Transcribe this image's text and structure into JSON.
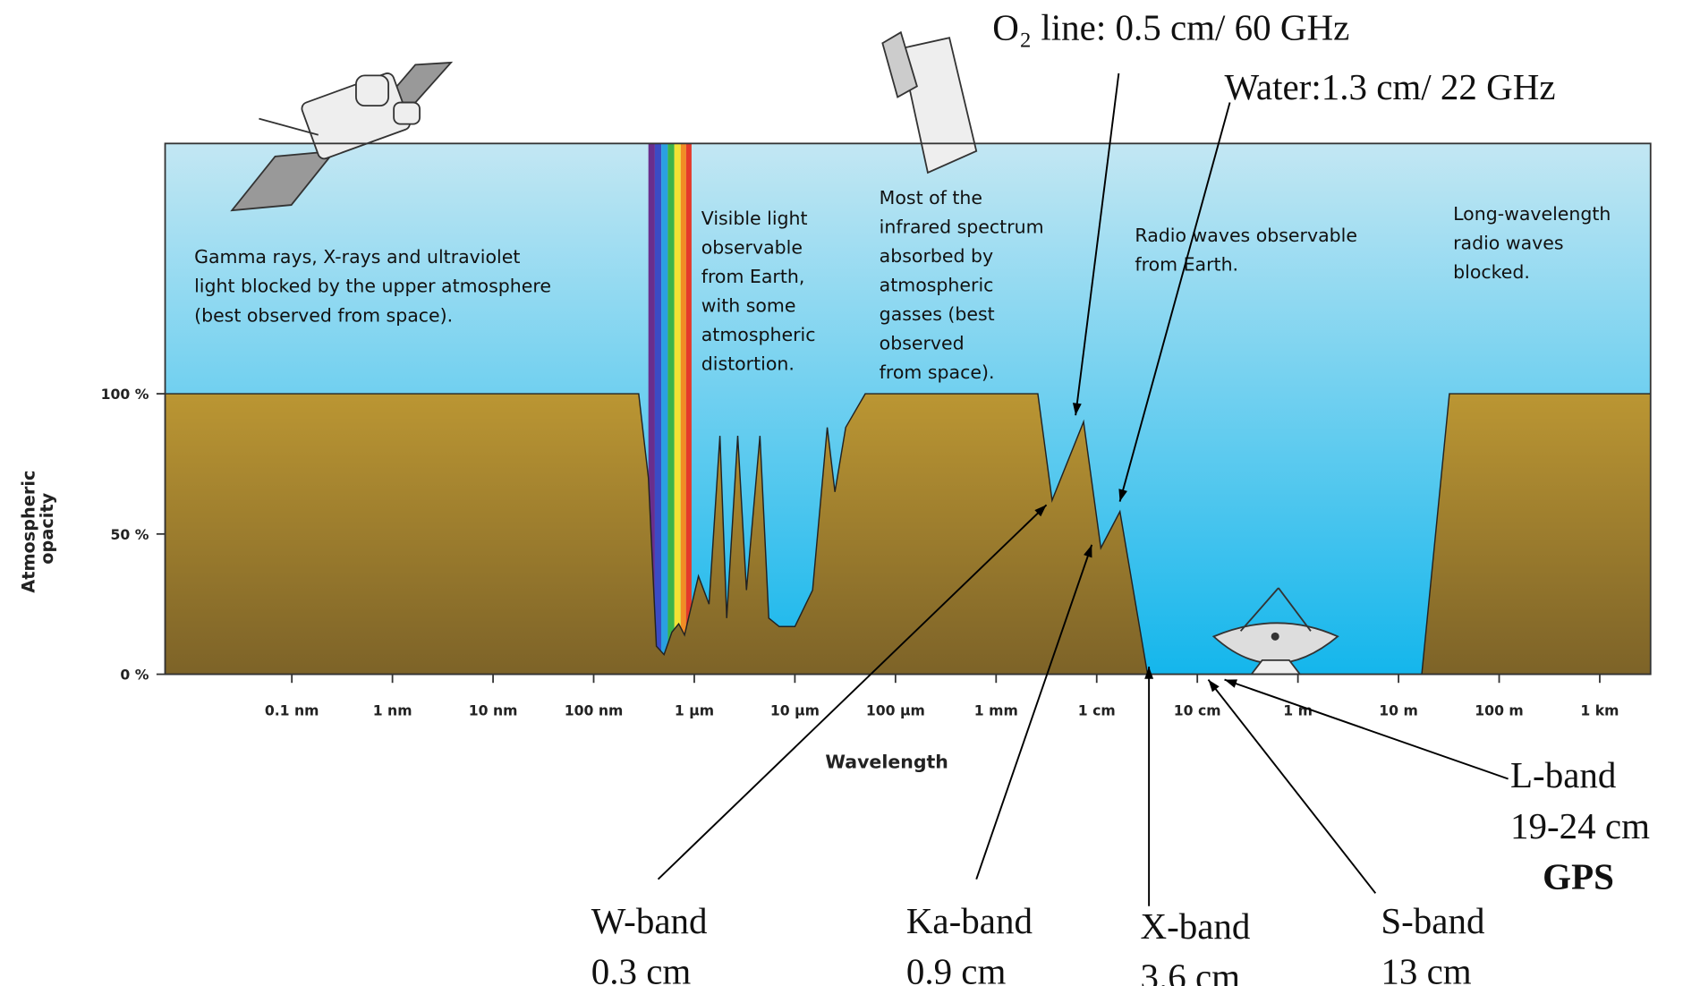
{
  "chart_data": {
    "type": "area",
    "xlabel": "Wavelength",
    "ylabel": [
      "Atmospheric",
      "opacity"
    ],
    "xscale": "log",
    "xlim": [
      5.5e-12,
      3200
    ],
    "ylim": [
      0,
      100
    ],
    "xticks": [
      {
        "value": 1e-10,
        "label": "0.1 nm"
      },
      {
        "value": 1e-09,
        "label": "1 nm"
      },
      {
        "value": 1e-08,
        "label": "10 nm"
      },
      {
        "value": 1e-07,
        "label": "100 nm"
      },
      {
        "value": 1e-06,
        "label": "1 µm"
      },
      {
        "value": 1e-05,
        "label": "10 µm"
      },
      {
        "value": 0.0001,
        "label": "100 µm"
      },
      {
        "value": 0.001,
        "label": "1 mm"
      },
      {
        "value": 0.01,
        "label": "1 cm"
      },
      {
        "value": 0.1,
        "label": "10 cm"
      },
      {
        "value": 1,
        "label": "1 m"
      },
      {
        "value": 10,
        "label": "10 m"
      },
      {
        "value": 100,
        "label": "100 m"
      },
      {
        "value": 1000,
        "label": "1 km"
      }
    ],
    "yticks": [
      {
        "value": 0,
        "label": "0 %"
      },
      {
        "value": 50,
        "label": "50 %"
      },
      {
        "value": 100,
        "label": "100 %"
      }
    ],
    "x": [
      5.5e-12,
      2.8e-07,
      3.5e-07,
      4.2e-07,
      5e-07,
      6e-07,
      7e-07,
      8e-07,
      1.1e-06,
      1.4e-06,
      1.8e-06,
      2.1e-06,
      2.7e-06,
      3.3e-06,
      4.5e-06,
      5.5e-06,
      7e-06,
      1e-05,
      1.5e-05,
      2.1e-05,
      2.5e-05,
      3.2e-05,
      5e-05,
      0.0026,
      0.0036,
      0.0074,
      0.011,
      0.017,
      0.032,
      17,
      32,
      3200
    ],
    "series": [
      {
        "name": "Atmospheric opacity",
        "color": "#a8832e",
        "values": [
          100,
          100,
          70,
          10,
          7,
          15,
          18,
          14,
          35,
          25,
          85,
          20,
          85,
          30,
          85,
          20,
          17,
          17,
          30,
          88,
          65,
          88,
          100,
          100,
          62,
          90,
          45,
          58,
          0,
          0,
          100,
          100
        ]
      }
    ],
    "annotations": [
      [
        "Gamma rays, X-rays and ultraviolet",
        "light blocked by the upper atmosphere",
        "(best observed from space)."
      ],
      [
        "Visible light",
        "observable",
        "from Earth,",
        "with some",
        "atmospheric",
        "distortion."
      ],
      [
        "Most of the",
        "infrared spectrum",
        "absorbed by",
        "atmospheric",
        "gasses (best",
        "observed",
        "from space)."
      ],
      [
        "Radio waves observable",
        "from Earth."
      ],
      [
        "Long-wavelength",
        "radio waves",
        "blocked."
      ]
    ],
    "lines": [
      "O₂ line: 0.5 cm/ 60 GHz",
      "Water:1.3 cm/ 22 GHz"
    ],
    "bands": [
      [
        "W-band",
        "0.3 cm"
      ],
      [
        "Ka-band",
        "0.9 cm"
      ],
      [
        "X-band",
        "3.6 cm"
      ],
      [
        "S-band",
        "13 cm"
      ],
      [
        "L-band",
        "19-24 cm",
        "GPS"
      ]
    ]
  }
}
